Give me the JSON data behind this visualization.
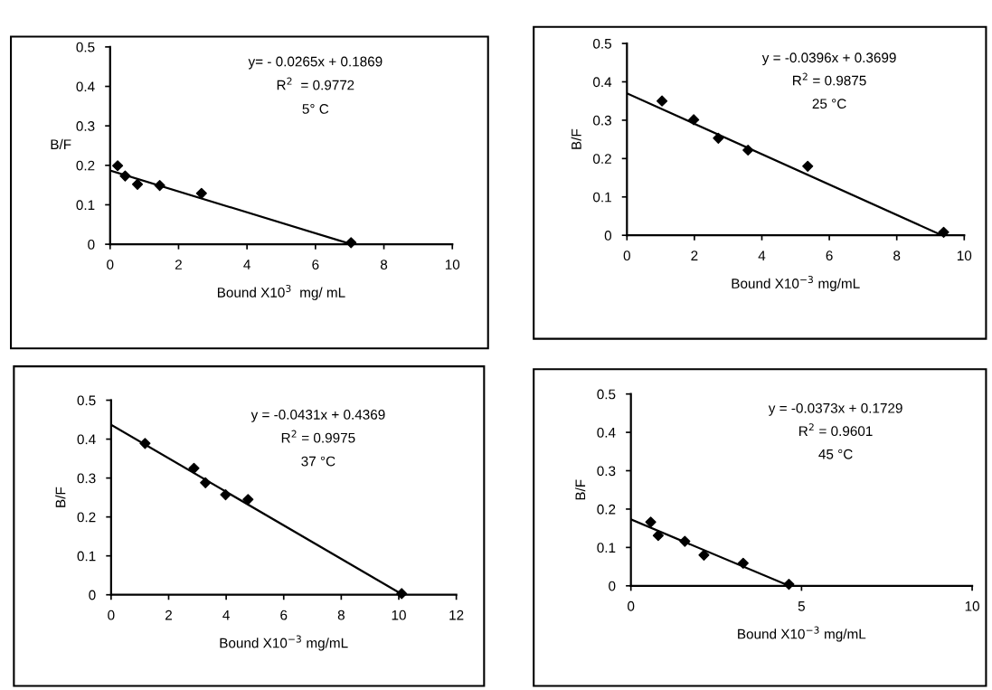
{
  "chart_data": [
    {
      "type": "scatter",
      "xlabel": "Bound X10$^{3}$  mg/ mL",
      "ylabel": "B/F",
      "annotations": [
        "y= - 0.0265x + 0.1869",
        "R$^{2}$  = 0.9772",
        "5° C"
      ],
      "xlim": [
        0,
        10
      ],
      "xticks": [
        0,
        2,
        4,
        6,
        8,
        10
      ],
      "ylim": [
        0,
        0.5
      ],
      "yticks": [
        0,
        0.1,
        0.2,
        0.3,
        0.4,
        0.5
      ],
      "grid": false,
      "marker": "diamond",
      "series": [
        {
          "color": "#000000",
          "x": [
            0.22,
            0.44,
            0.8,
            1.45,
            2.67,
            7.04
          ],
          "values": [
            0.199,
            0.173,
            0.152,
            0.149,
            0.129,
            0.004
          ]
        },
        {
          "type": "line",
          "marker": "none",
          "color": "#000000",
          "x": [
            0,
            7.05
          ],
          "values": [
            0.187,
            0
          ]
        }
      ]
    },
    {
      "type": "scatter",
      "xlabel": "Bound X10$^{−3}$ mg/mL",
      "ylabel": "B/F",
      "annotations": [
        "y = -0.0396x + 0.3699",
        "R$^{2}$ = 0.9875",
        "25 °C"
      ],
      "xlim": [
        0,
        10
      ],
      "xticks": [
        0,
        2,
        4,
        6,
        8,
        10
      ],
      "ylim": [
        0,
        0.5
      ],
      "yticks": [
        0,
        0.1,
        0.2,
        0.3,
        0.4,
        0.5
      ],
      "grid": false,
      "marker": "diamond",
      "series": [
        {
          "color": "#000000",
          "x": [
            1.04,
            1.98,
            2.71,
            3.59,
            5.36,
            9.39
          ],
          "values": [
            0.35,
            0.301,
            0.253,
            0.222,
            0.18,
            0.008
          ]
        },
        {
          "type": "line",
          "marker": "none",
          "color": "#000000",
          "x": [
            0,
            9.34
          ],
          "values": [
            0.37,
            0
          ]
        }
      ]
    },
    {
      "type": "scatter",
      "xlabel": "Bound X10$^{−3}$ mg/mL",
      "ylabel": "B/F",
      "annotations": [
        "y = -0.0431x + 0.4369",
        "R$^{2}$ = 0.9975",
        "37 °C"
      ],
      "xlim": [
        0,
        12
      ],
      "xticks": [
        0,
        2,
        4,
        6,
        8,
        10,
        12
      ],
      "ylim": [
        0,
        0.5
      ],
      "yticks": [
        0,
        0.1,
        0.2,
        0.3,
        0.4,
        0.5
      ],
      "grid": false,
      "marker": "diamond",
      "series": [
        {
          "color": "#000000",
          "x": [
            1.18,
            2.88,
            3.28,
            3.98,
            4.76,
            10.1
          ],
          "values": [
            0.389,
            0.325,
            0.288,
            0.257,
            0.245,
            0.003
          ]
        },
        {
          "type": "line",
          "marker": "none",
          "color": "#000000",
          "x": [
            0,
            10.14
          ],
          "values": [
            0.437,
            0
          ]
        }
      ]
    },
    {
      "type": "scatter",
      "xlabel": "Bound X10$^{−3}$ mg/mL",
      "ylabel": "B/F",
      "annotations": [
        "y = -0.0373x + 0.1729",
        "R$^{2}$ = 0.9601",
        "45 °C"
      ],
      "xlim": [
        0,
        10
      ],
      "xticks": [
        0,
        5,
        10
      ],
      "ylim": [
        0,
        0.5
      ],
      "yticks": [
        0,
        0.1,
        0.2,
        0.3,
        0.4,
        0.5
      ],
      "grid": false,
      "marker": "diamond",
      "series": [
        {
          "color": "#000000",
          "x": [
            0.58,
            0.8,
            1.58,
            2.14,
            3.29,
            4.63
          ],
          "values": [
            0.166,
            0.131,
            0.116,
            0.08,
            0.059,
            0.004
          ]
        },
        {
          "type": "line",
          "marker": "none",
          "color": "#000000",
          "x": [
            0,
            4.64
          ],
          "values": [
            0.173,
            0
          ]
        }
      ]
    }
  ]
}
